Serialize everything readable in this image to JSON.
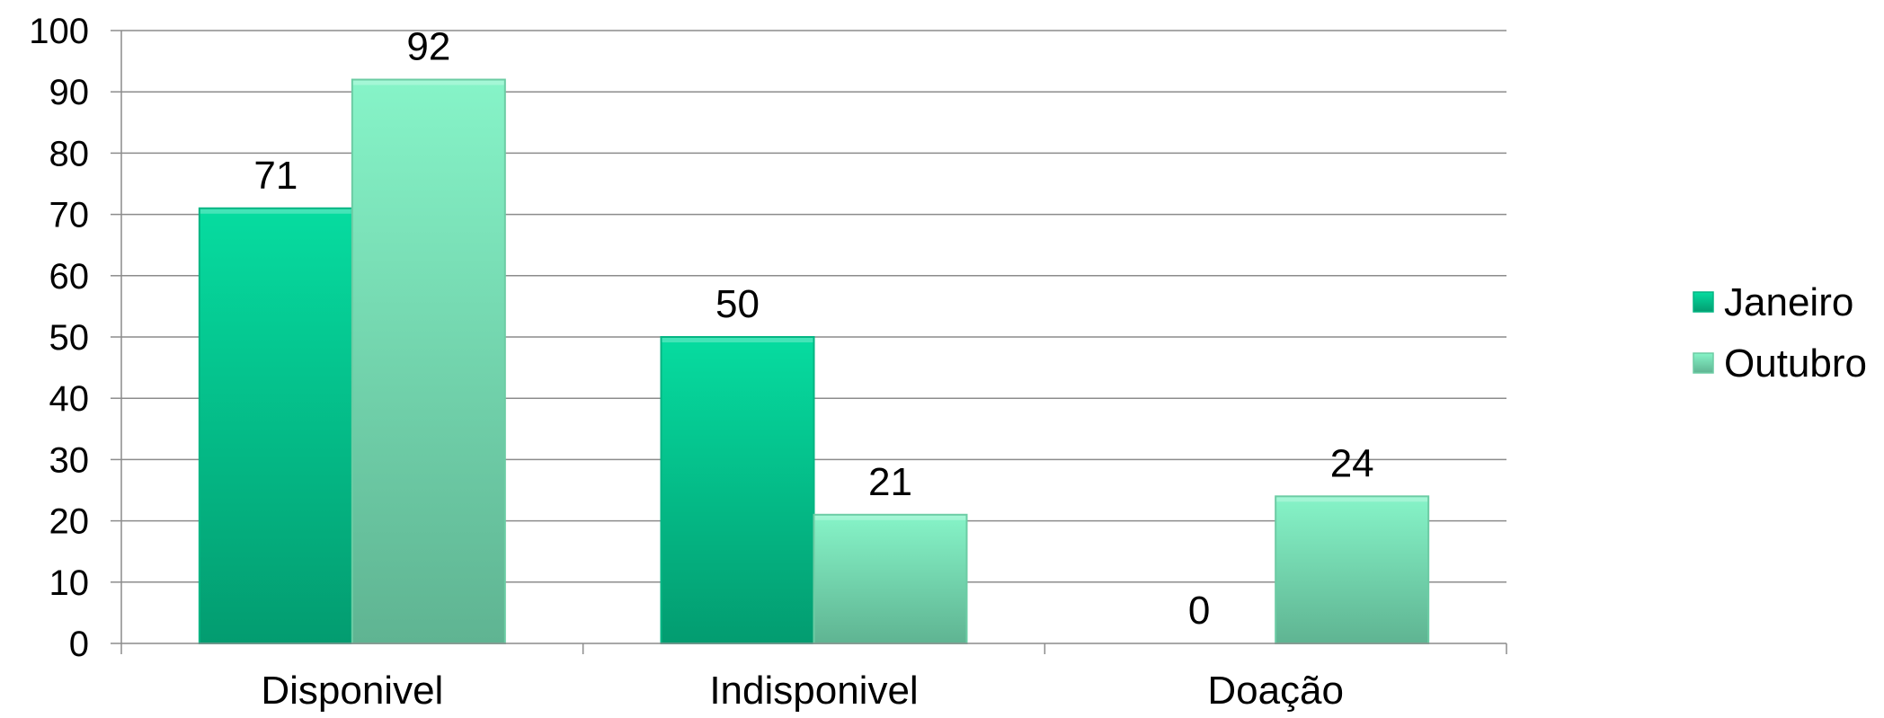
{
  "chart_data": {
    "type": "bar",
    "title": "",
    "xlabel": "",
    "ylabel": "",
    "categories": [
      "Disponivel",
      "Indisponivel",
      "Doação"
    ],
    "series": [
      {
        "name": "Janeiro",
        "values": [
          71,
          50,
          0
        ]
      },
      {
        "name": "Outubro",
        "values": [
          92,
          21,
          24
        ]
      }
    ],
    "ylim": [
      0,
      100
    ],
    "yticks": [
      0,
      10,
      20,
      30,
      40,
      50,
      60,
      70,
      80,
      90,
      100
    ],
    "grid": true,
    "legend_position": "right",
    "colors": {
      "Janeiro": {
        "top": "#06DCA0",
        "bottom": "#039C70",
        "edge": "#04B583"
      },
      "Outubro": {
        "top": "#86F4C8",
        "bottom": "#5FB492",
        "edge": "#6CCCA4"
      },
      "grid": "#8C8C8C",
      "axis": "#8C8C8C"
    }
  }
}
